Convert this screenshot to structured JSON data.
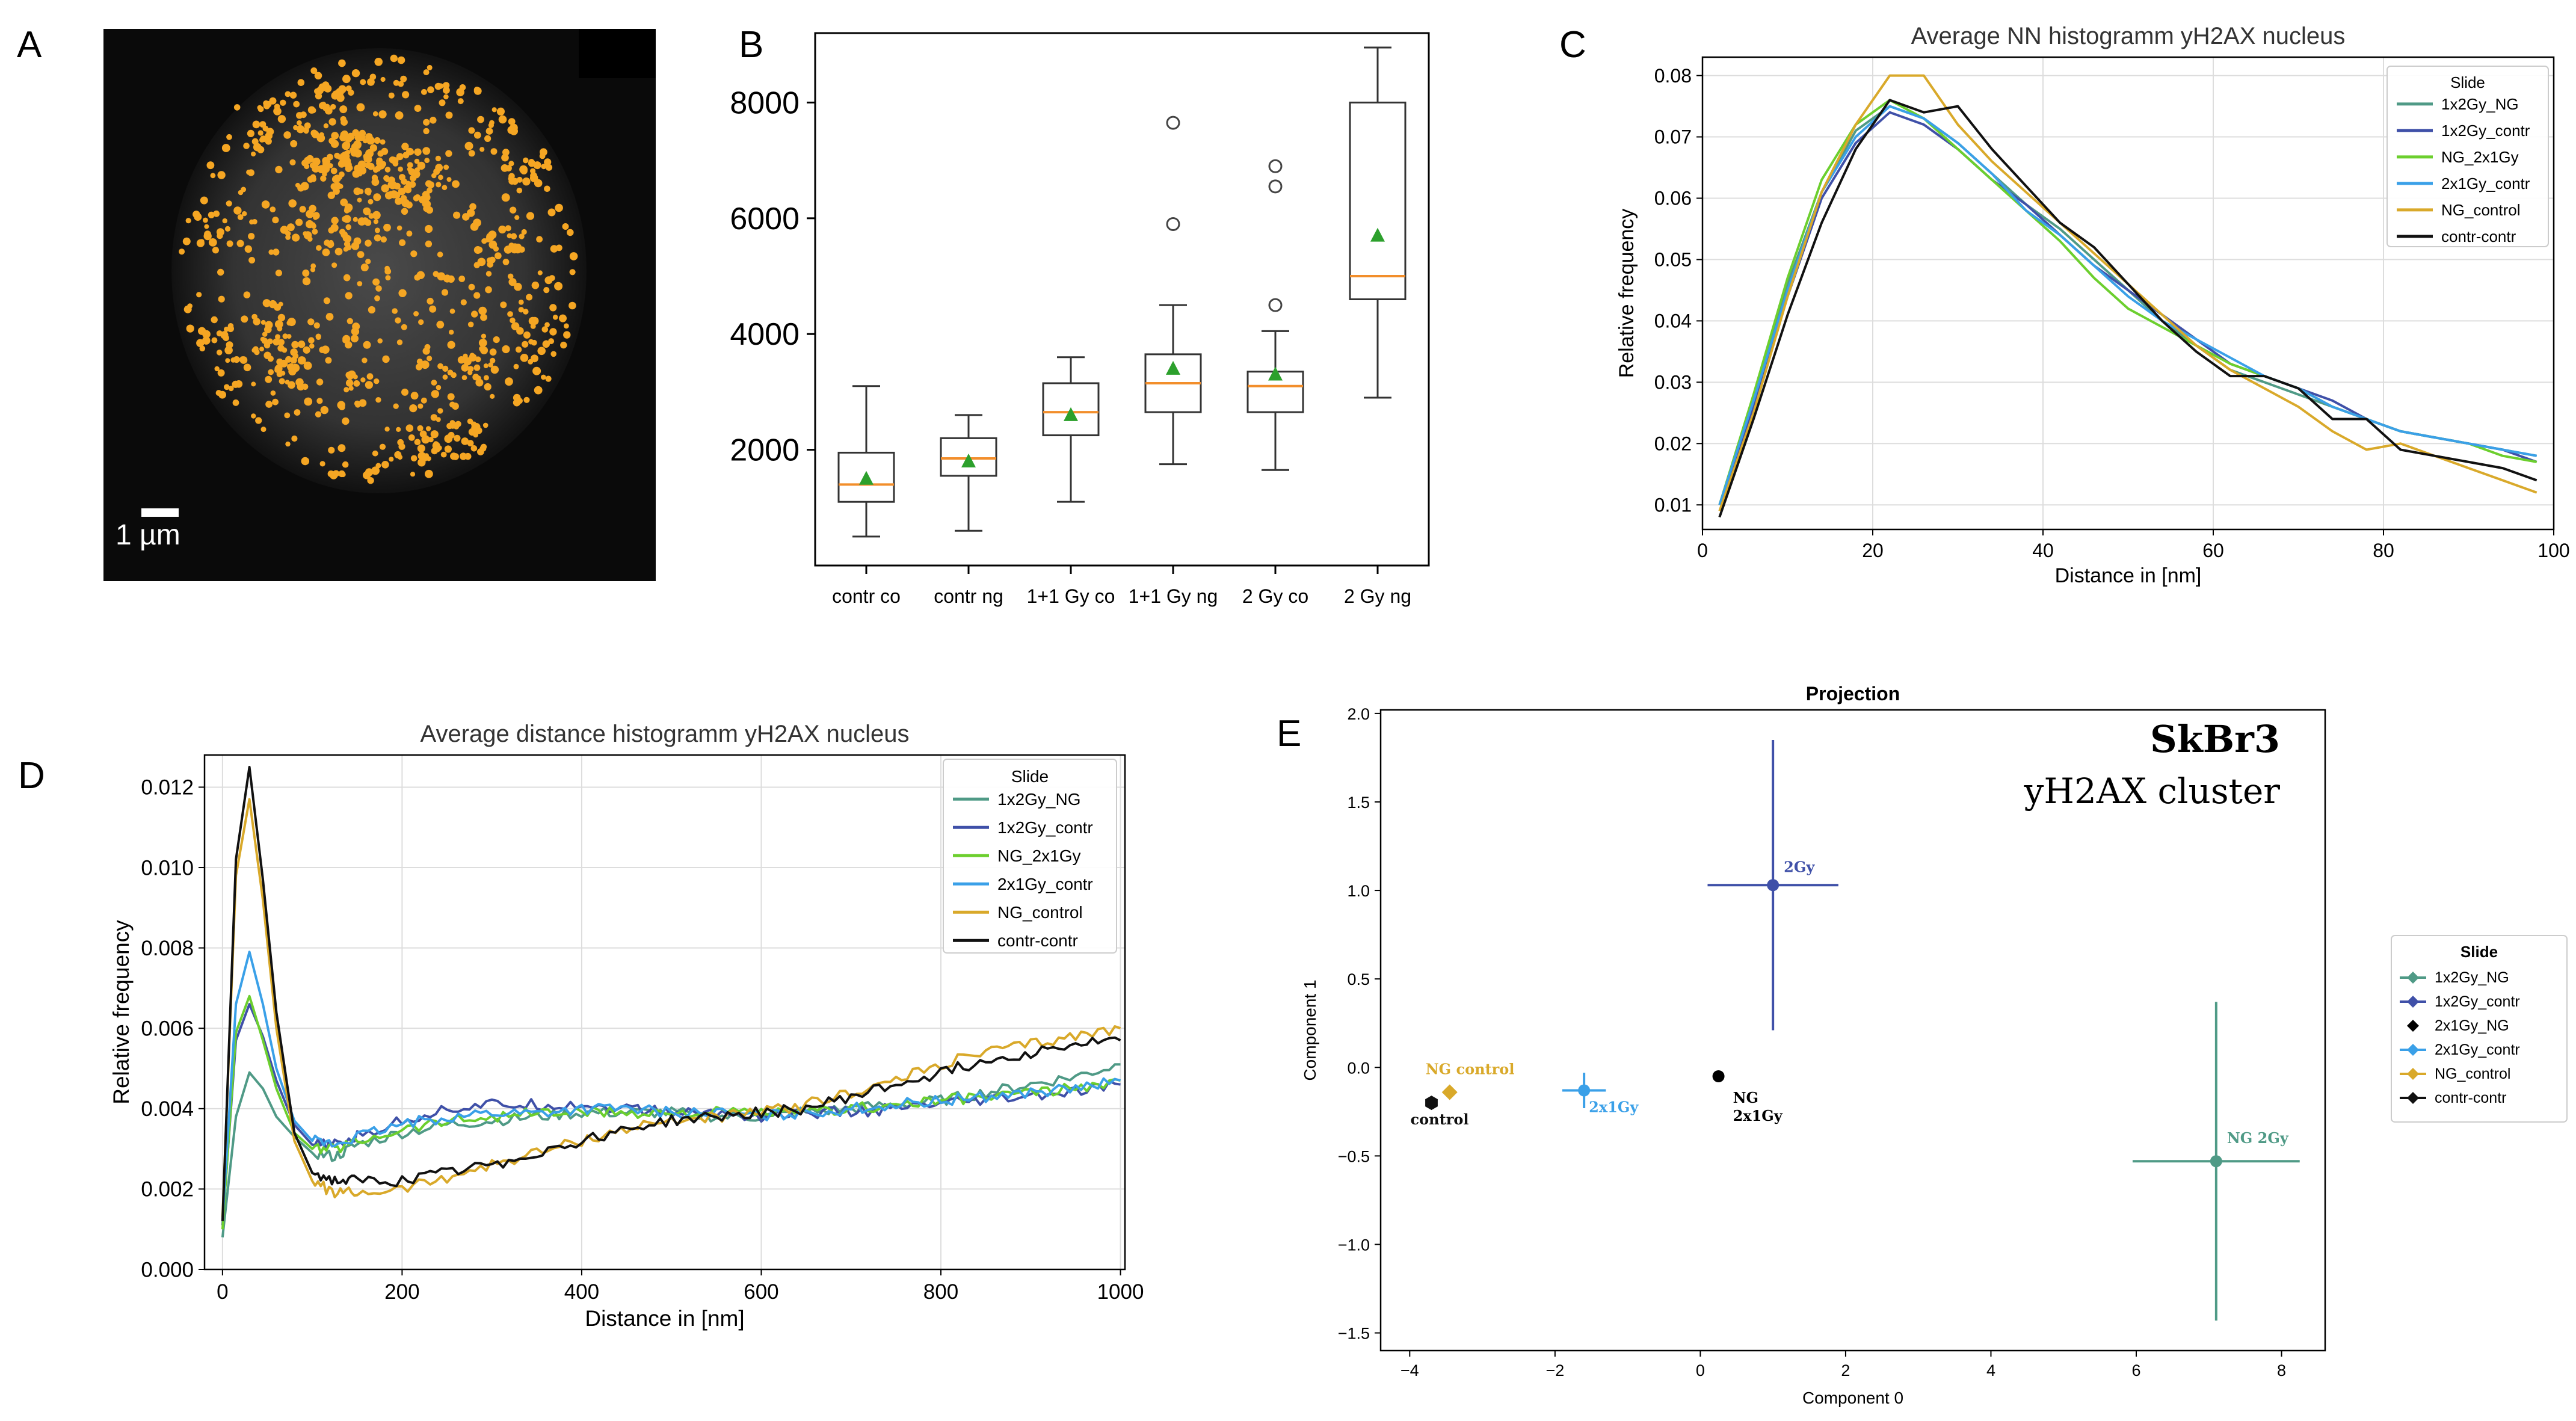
{
  "panel_letters": {
    "a": "A",
    "b": "B",
    "c": "C",
    "d": "D",
    "e": "E"
  },
  "colors": {
    "orange_dot": "#f5a623",
    "series": {
      "1x2Gy_NG": "#4f9a86",
      "1x2Gy_contr": "#3f50a8",
      "NG_2x1Gy": "#6ccf2e",
      "2x1Gy_contr": "#3aa0e8",
      "NG_control": "#d9a92a",
      "contr-contr": "#111111"
    },
    "box_median": "#f28e2b",
    "box_mean": "#2ca02c"
  },
  "panel_a": {
    "scale_label": "1 µm"
  },
  "chart_data": [
    {
      "panel": "B",
      "type": "box",
      "categories": [
        "contr co",
        "contr ng",
        "1+1 Gy co",
        "1+1 Gy ng",
        "2 Gy co",
        "2 Gy ng"
      ],
      "ylim": [
        0,
        9200
      ],
      "yticks": [
        "2000",
        "4000",
        "6000",
        "8000"
      ],
      "boxes": [
        {
          "whislo": 500,
          "q1": 1100,
          "med": 1400,
          "q3": 1950,
          "whishi": 3100,
          "mean": 1500,
          "fliers": []
        },
        {
          "whislo": 600,
          "q1": 1550,
          "med": 1850,
          "q3": 2200,
          "whishi": 2600,
          "mean": 1800,
          "fliers": []
        },
        {
          "whislo": 1100,
          "q1": 2250,
          "med": 2650,
          "q3": 3150,
          "whishi": 3600,
          "mean": 2600,
          "fliers": []
        },
        {
          "whislo": 1750,
          "q1": 2650,
          "med": 3150,
          "q3": 3650,
          "whishi": 4500,
          "mean": 3400,
          "fliers": [
            5900,
            7650
          ]
        },
        {
          "whislo": 1650,
          "q1": 2650,
          "med": 3100,
          "q3": 3350,
          "whishi": 4050,
          "mean": 3300,
          "fliers": [
            4500,
            6550,
            6900
          ]
        },
        {
          "whislo": 2900,
          "q1": 4600,
          "med": 5000,
          "q3": 8000,
          "whishi": 8950,
          "mean": 5700,
          "fliers": []
        }
      ]
    },
    {
      "panel": "C",
      "type": "line",
      "title": "Average NN histogramm yH2AX nucleus",
      "xlabel": "Distance in [nm]",
      "ylabel": "Relative frequency",
      "xlim": [
        0,
        100
      ],
      "ylim": [
        0.006,
        0.083
      ],
      "xticks": [
        "0",
        "20",
        "40",
        "60",
        "80",
        "100"
      ],
      "yticks": [
        "0.01",
        "0.02",
        "0.03",
        "0.04",
        "0.05",
        "0.06",
        "0.07",
        "0.08"
      ],
      "legend_title": "Slide",
      "legend_position": "top-right",
      "x": [
        2,
        6,
        10,
        14,
        18,
        22,
        26,
        30,
        34,
        38,
        42,
        46,
        50,
        54,
        58,
        62,
        66,
        70,
        74,
        78,
        82,
        86,
        90,
        94,
        98
      ],
      "series": [
        {
          "name": "1x2Gy_NG",
          "values": [
            0.01,
            0.027,
            0.046,
            0.061,
            0.071,
            0.075,
            0.073,
            0.069,
            0.064,
            0.059,
            0.055,
            0.05,
            0.045,
            0.04,
            0.036,
            0.032,
            0.03,
            0.028,
            0.026,
            0.024,
            0.022,
            0.021,
            0.02,
            0.019,
            0.018
          ]
        },
        {
          "name": "1x2Gy_contr",
          "values": [
            0.01,
            0.026,
            0.044,
            0.06,
            0.069,
            0.074,
            0.072,
            0.068,
            0.063,
            0.059,
            0.054,
            0.049,
            0.045,
            0.041,
            0.037,
            0.033,
            0.031,
            0.029,
            0.027,
            0.024,
            0.022,
            0.021,
            0.02,
            0.019,
            0.017
          ]
        },
        {
          "name": "NG_2x1Gy",
          "values": [
            0.01,
            0.028,
            0.047,
            0.063,
            0.072,
            0.076,
            0.073,
            0.068,
            0.063,
            0.058,
            0.053,
            0.047,
            0.042,
            0.039,
            0.036,
            0.033,
            0.031,
            0.029,
            0.026,
            0.024,
            0.022,
            0.021,
            0.02,
            0.018,
            0.017
          ]
        },
        {
          "name": "2x1Gy_contr",
          "values": [
            0.01,
            0.027,
            0.045,
            0.061,
            0.07,
            0.075,
            0.073,
            0.069,
            0.064,
            0.058,
            0.054,
            0.049,
            0.044,
            0.04,
            0.037,
            0.034,
            0.031,
            0.029,
            0.026,
            0.024,
            0.022,
            0.021,
            0.02,
            0.019,
            0.018
          ]
        },
        {
          "name": "NG_control",
          "values": [
            0.009,
            0.025,
            0.044,
            0.061,
            0.072,
            0.08,
            0.08,
            0.072,
            0.066,
            0.061,
            0.056,
            0.051,
            0.046,
            0.041,
            0.036,
            0.032,
            0.029,
            0.026,
            0.022,
            0.019,
            0.02,
            0.018,
            0.016,
            0.014,
            0.012
          ]
        },
        {
          "name": "contr-contr",
          "values": [
            0.008,
            0.024,
            0.041,
            0.056,
            0.068,
            0.076,
            0.074,
            0.075,
            0.068,
            0.062,
            0.056,
            0.052,
            0.046,
            0.04,
            0.035,
            0.031,
            0.031,
            0.029,
            0.024,
            0.024,
            0.019,
            0.018,
            0.017,
            0.016,
            0.014
          ]
        }
      ]
    },
    {
      "panel": "D",
      "type": "line",
      "title": "Average distance histogramm yH2AX nucleus",
      "xlabel": "Distance in [nm]",
      "ylabel": "Relative frequency",
      "xlim": [
        -20,
        1005
      ],
      "ylim": [
        0,
        0.0128
      ],
      "xticks": [
        "0",
        "200",
        "400",
        "600",
        "800",
        "1000"
      ],
      "yticks": [
        "0.000",
        "0.002",
        "0.004",
        "0.006",
        "0.008",
        "0.010",
        "0.012"
      ],
      "legend_title": "Slide",
      "legend_position": "top-right",
      "x": [
        0,
        15,
        30,
        45,
        60,
        80,
        100,
        125,
        150,
        200,
        250,
        300,
        350,
        400,
        450,
        500,
        550,
        600,
        650,
        700,
        750,
        800,
        850,
        900,
        950,
        1000
      ],
      "series": [
        {
          "name": "1x2Gy_NG",
          "values": [
            0.0008,
            0.0038,
            0.0049,
            0.0045,
            0.0038,
            0.0033,
            0.0029,
            0.0028,
            0.0031,
            0.0034,
            0.0036,
            0.0037,
            0.0038,
            0.0039,
            0.0039,
            0.0039,
            0.0038,
            0.0038,
            0.0039,
            0.004,
            0.0041,
            0.0042,
            0.0044,
            0.0046,
            0.0048,
            0.0051
          ]
        },
        {
          "name": "1x2Gy_contr",
          "values": [
            0.0011,
            0.0057,
            0.0066,
            0.0058,
            0.0047,
            0.0036,
            0.0031,
            0.0031,
            0.0033,
            0.0037,
            0.004,
            0.0041,
            0.0041,
            0.0041,
            0.004,
            0.0039,
            0.0039,
            0.0038,
            0.0039,
            0.0039,
            0.004,
            0.0041,
            0.0042,
            0.0043,
            0.0044,
            0.0046
          ]
        },
        {
          "name": "NG_2x1Gy",
          "values": [
            0.001,
            0.0059,
            0.0068,
            0.0057,
            0.0045,
            0.0034,
            0.003,
            0.003,
            0.0032,
            0.0035,
            0.0037,
            0.0038,
            0.0039,
            0.0039,
            0.0039,
            0.0039,
            0.0039,
            0.0039,
            0.0039,
            0.004,
            0.0041,
            0.0042,
            0.0043,
            0.0044,
            0.0045,
            0.0047
          ]
        },
        {
          "name": "2x1Gy_contr",
          "values": [
            0.0012,
            0.0066,
            0.0079,
            0.0066,
            0.005,
            0.0037,
            0.0032,
            0.0031,
            0.0033,
            0.0036,
            0.0038,
            0.0039,
            0.0039,
            0.004,
            0.004,
            0.0039,
            0.0039,
            0.0038,
            0.0039,
            0.004,
            0.0041,
            0.0042,
            0.0043,
            0.0044,
            0.0045,
            0.0047
          ]
        },
        {
          "name": "NG_control",
          "values": [
            0.0013,
            0.0098,
            0.0117,
            0.0092,
            0.006,
            0.0032,
            0.0022,
            0.0019,
            0.0019,
            0.002,
            0.0023,
            0.0026,
            0.0029,
            0.0032,
            0.0035,
            0.0037,
            0.0038,
            0.0039,
            0.0041,
            0.0044,
            0.0047,
            0.0051,
            0.0054,
            0.0056,
            0.0058,
            0.006
          ]
        },
        {
          "name": "contr-contr",
          "values": [
            0.0012,
            0.0102,
            0.0125,
            0.0097,
            0.0064,
            0.0034,
            0.0024,
            0.0022,
            0.0022,
            0.0022,
            0.0024,
            0.0026,
            0.0029,
            0.0032,
            0.0035,
            0.0037,
            0.0038,
            0.0039,
            0.004,
            0.0043,
            0.0046,
            0.0049,
            0.0052,
            0.0054,
            0.0056,
            0.0057
          ]
        }
      ]
    },
    {
      "panel": "E",
      "type": "scatter",
      "title": "Projection",
      "xlabel": "Component 0",
      "ylabel": "Component 1",
      "xlim": [
        -4.4,
        8.6
      ],
      "ylim": [
        -1.6,
        2.02
      ],
      "xticks": [
        "−4",
        "−2",
        "0",
        "2",
        "4",
        "6",
        "8"
      ],
      "yticks": [
        "−1.5",
        "−1.0",
        "−0.5",
        "0.0",
        "0.5",
        "1.0",
        "1.5",
        "2.0"
      ],
      "annotation_title": "SkBr3",
      "annotation_subtitle": "yH2AX cluster",
      "legend_title": "Slide",
      "legend_position": "outside-right",
      "points": [
        {
          "name": "1x2Gy_NG",
          "x": 7.1,
          "y": -0.53,
          "xerr": 1.15,
          "yerr": 0.9,
          "label": "NG 2Gy"
        },
        {
          "name": "1x2Gy_contr",
          "x": 1.0,
          "y": 1.03,
          "xerr": 0.9,
          "yerr": 0.82,
          "label": "2Gy"
        },
        {
          "name": "2x1Gy_NG",
          "x": 0.25,
          "y": -0.05,
          "xerr": 0.65,
          "yerr": 0.24,
          "label": "NG\n2x1Gy"
        },
        {
          "name": "2x1Gy_contr",
          "x": -1.6,
          "y": -0.13,
          "xerr": 0.3,
          "yerr": 0.1,
          "label": "2x1Gy"
        },
        {
          "name": "NG_control",
          "x": -3.45,
          "y": -0.14,
          "xerr": 0.0,
          "yerr": 0.0,
          "label": "NG control"
        },
        {
          "name": "contr-contr",
          "x": -3.7,
          "y": -0.2,
          "xerr": 0.0,
          "yerr": 0.0,
          "label": "control"
        }
      ]
    }
  ]
}
